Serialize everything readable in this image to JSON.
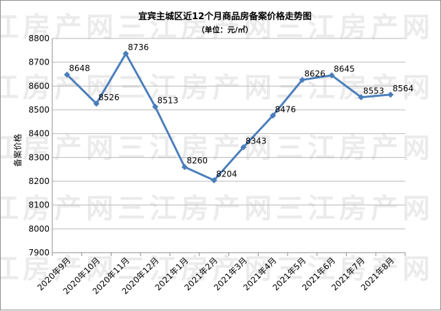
{
  "chart_data": {
    "type": "line",
    "title": "宜宾主城区近12个月商品房备案价格走势图",
    "subtitle": "（单位：元/㎡）",
    "ylabel": "备案价格",
    "xlabel": "",
    "categories": [
      "2020年9月",
      "2020年10月",
      "2020年11月",
      "2020年12月",
      "2021年1月",
      "2021年2月",
      "2021年3月",
      "2021年4月",
      "2021年5月",
      "2021年6月",
      "2021年7月",
      "2021年8月"
    ],
    "series": [
      {
        "values": [
          8648,
          8526,
          8736,
          8513,
          8260,
          8204,
          8343,
          8476,
          8626,
          8645,
          8553,
          8564
        ]
      }
    ],
    "ylim": [
      7900,
      8800
    ],
    "yticks": [
      7900,
      8000,
      8100,
      8200,
      8300,
      8400,
      8500,
      8600,
      8700,
      8800
    ],
    "grid": true,
    "legend": "none",
    "line_color": "#4a7ebb",
    "grid_color": "#b7b7b7"
  },
  "watermark": "三江房产网"
}
